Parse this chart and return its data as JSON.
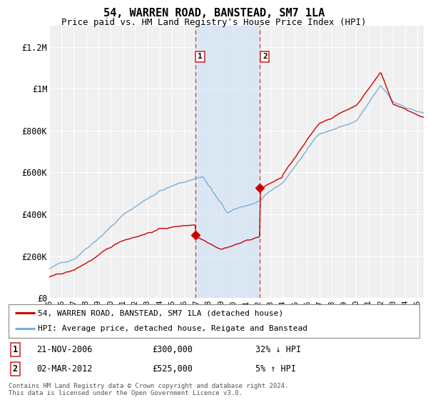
{
  "title": "54, WARREN ROAD, BANSTEAD, SM7 1LA",
  "subtitle": "Price paid vs. HM Land Registry's House Price Index (HPI)",
  "title_fontsize": 11,
  "subtitle_fontsize": 9,
  "ylabel_ticks": [
    "£0",
    "£200K",
    "£400K",
    "£600K",
    "£800K",
    "£1M",
    "£1.2M"
  ],
  "ytick_values": [
    0,
    200000,
    400000,
    600000,
    800000,
    1000000,
    1200000
  ],
  "ylim": [
    0,
    1300000
  ],
  "xlim_start": 1995.0,
  "xlim_end": 2025.5,
  "sale1_x": 2006.896,
  "sale1_y": 300000,
  "sale2_x": 2012.164,
  "sale2_y": 525000,
  "sale1_label": "1",
  "sale2_label": "2",
  "shaded_color": "#cce0f5",
  "shaded_alpha": 0.6,
  "vline_color": "#dd4444",
  "vline_style": "--",
  "legend_red_label": "54, WARREN ROAD, BANSTEAD, SM7 1LA (detached house)",
  "legend_blue_label": "HPI: Average price, detached house, Reigate and Banstead",
  "footer": "Contains HM Land Registry data © Crown copyright and database right 2024.\nThis data is licensed under the Open Government Licence v3.0.",
  "red_line_color": "#cc0000",
  "blue_line_color": "#7ab0d8",
  "background_color": "#ffffff",
  "plot_bg_color": "#f0f0f0",
  "grid_color": "#ffffff",
  "xtick_years": [
    1995,
    1996,
    1997,
    1998,
    1999,
    2000,
    2001,
    2002,
    2003,
    2004,
    2005,
    2006,
    2007,
    2008,
    2009,
    2010,
    2011,
    2012,
    2013,
    2014,
    2015,
    2016,
    2017,
    2018,
    2019,
    2020,
    2021,
    2022,
    2023,
    2024,
    2025
  ]
}
